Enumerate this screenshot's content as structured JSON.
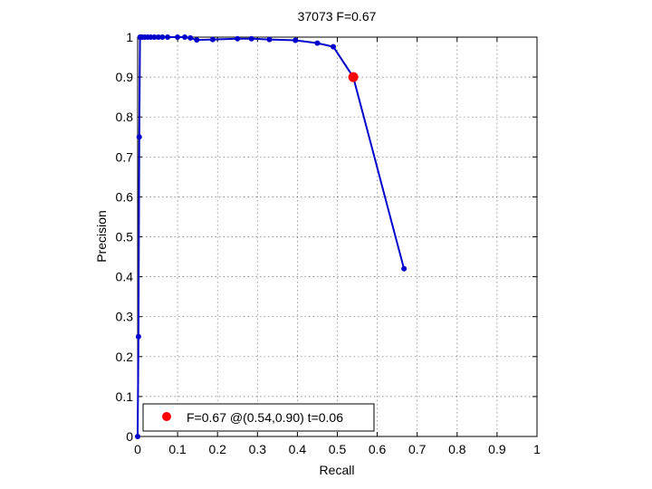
{
  "chart_data": {
    "type": "line",
    "title": "37073 F=0.67",
    "xlabel": "Recall",
    "ylabel": "Precision",
    "xlim": [
      0,
      1
    ],
    "ylim": [
      0,
      1
    ],
    "xticks": [
      0,
      0.1,
      0.2,
      0.3,
      0.4,
      0.5,
      0.6,
      0.7,
      0.8,
      0.9,
      1
    ],
    "yticks": [
      0,
      0.1,
      0.2,
      0.3,
      0.4,
      0.5,
      0.6,
      0.7,
      0.8,
      0.9,
      1
    ],
    "xtick_labels": [
      "0",
      "0.1",
      "0.2",
      "0.3",
      "0.4",
      "0.5",
      "0.6",
      "0.7",
      "0.8",
      "0.9",
      "1"
    ],
    "ytick_labels": [
      "0",
      "0.1",
      "0.2",
      "0.3",
      "0.4",
      "0.5",
      "0.6",
      "0.7",
      "0.8",
      "0.9",
      "1"
    ],
    "grid": true,
    "legend_placement": "bottom-left",
    "series": [
      {
        "color": "#0000cc",
        "x": [
          0,
          0.002,
          0.004,
          0.006,
          0.008,
          0.012,
          0.018,
          0.025,
          0.033,
          0.042,
          0.052,
          0.062,
          0.075,
          0.1,
          0.118,
          0.132,
          0.148,
          0.188,
          0.25,
          0.285,
          0.33,
          0.395,
          0.45,
          0.49,
          0.54,
          0.667
        ],
        "y": [
          0,
          0.25,
          0.75,
          1.0,
          1.0,
          1.0,
          1.0,
          1.0,
          1.0,
          1.0,
          1.0,
          1.0,
          1.0,
          1.0,
          1.0,
          0.998,
          0.993,
          0.994,
          0.996,
          0.996,
          0.994,
          0.992,
          0.985,
          0.976,
          0.9,
          0.42
        ]
      }
    ],
    "highlight_point": {
      "x": 0.54,
      "y": 0.9,
      "color": "#ff0000"
    },
    "legend": {
      "label": "F=0.67 @(0.54,0.90) t=0.06"
    }
  }
}
